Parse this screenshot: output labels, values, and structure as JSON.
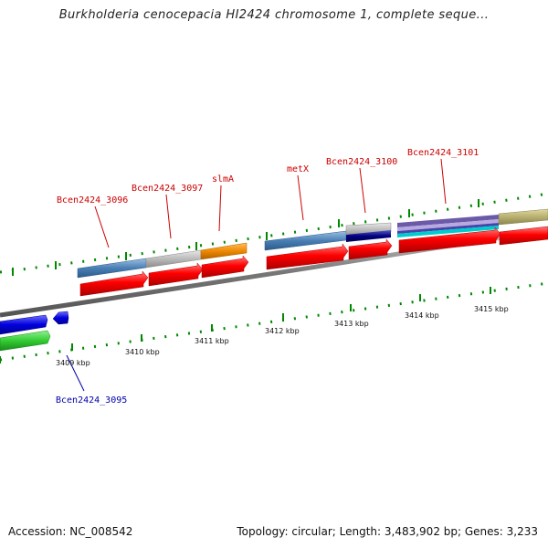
{
  "title": "Burkholderia cenocepacia HI2424 chromosome 1, complete seque...",
  "accession": "Accession: NC_008542",
  "summary": "Topology: circular; Length: 3,483,902 bp; Genes: 3,233",
  "colors": {
    "backbone": "#888888",
    "cds": "#ff0000",
    "tick": "#008800",
    "gene_label": "#cc0000",
    "minus_label": "#0000aa"
  },
  "ticks": [
    {
      "label": "3409 kbp",
      "name": "tick-label-3409"
    },
    {
      "label": "3410 kbp",
      "name": "tick-label-3410"
    },
    {
      "label": "3411 kbp",
      "name": "tick-label-3411"
    },
    {
      "label": "3412 kbp",
      "name": "tick-label-3412"
    },
    {
      "label": "3413 kbp",
      "name": "tick-label-3413"
    },
    {
      "label": "3414 kbp",
      "name": "tick-label-3414"
    },
    {
      "label": "3415 kbp",
      "name": "tick-label-3415"
    }
  ],
  "genes": [
    {
      "name": "Bcen2424_3096",
      "strand": "+",
      "color": "#4a7fb5"
    },
    {
      "name": "Bcen2424_3097",
      "strand": "+",
      "color": "#bbbbbb"
    },
    {
      "name": "slmA",
      "strand": "+",
      "color": "#ee8800"
    },
    {
      "name": "metX",
      "strand": "+",
      "color": "#4a7fb5"
    },
    {
      "name": "Bcen2424_3100",
      "strand": "+",
      "color": "#000080"
    },
    {
      "name": "Bcen2424_3101",
      "strand": "+",
      "color": "#6a5aa8"
    },
    {
      "name": "Bcen2424_3095",
      "strand": "-",
      "color": "#0000dd"
    }
  ]
}
